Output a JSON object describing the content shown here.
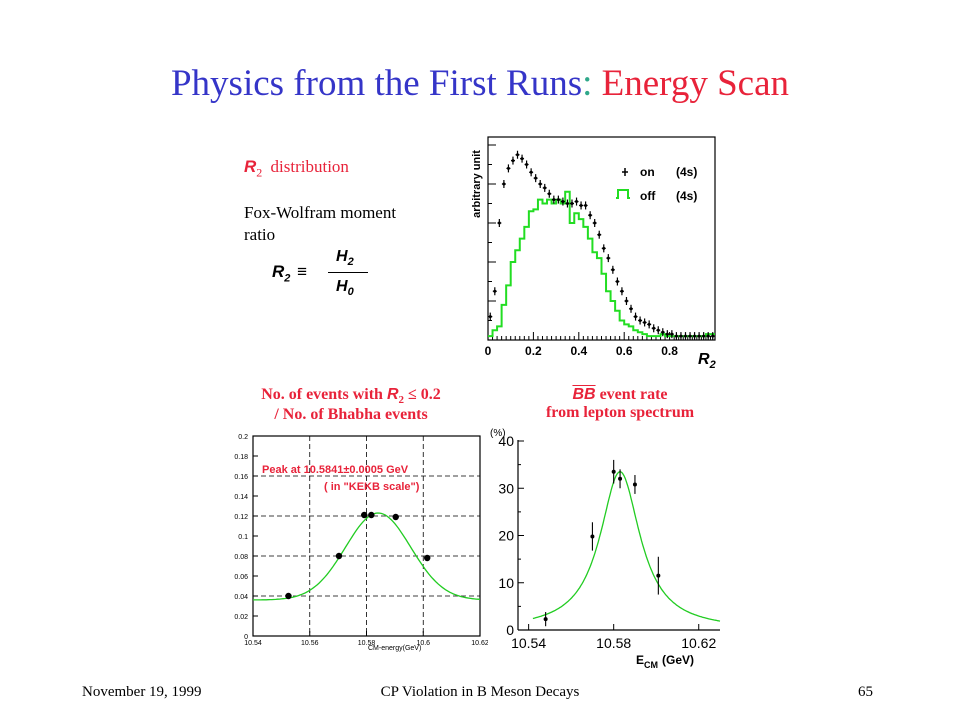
{
  "slide": {
    "title_main": "Physics from the First Runs",
    "title_sep": ": ",
    "title_highlight": "Energy Scan",
    "colors": {
      "title": "#3535c8",
      "separator": "#2fa88a",
      "highlight": "#e8233a",
      "caption": "#e8233a",
      "fit": "#22cc22"
    }
  },
  "definition": {
    "r2_symbol": "R",
    "r2_subscript": "2",
    "heading_rest": "distribution",
    "line1": "Fox-Wolfram moment",
    "line2": "ratio",
    "equiv": "≡",
    "numerator": "H",
    "numerator_sub": "2",
    "denominator": "H",
    "denominator_sub": "0"
  },
  "captions": {
    "bottom_left_line1_a": "No. of events with",
    "bottom_left_line1_b": "≤ 0.2",
    "bottom_left_line2": "/ No. of Bhabha events",
    "bottom_right_line1_a": "BB",
    "bottom_right_line1_b": "event rate",
    "bottom_right_line2": "from lepton spectrum"
  },
  "footer": {
    "date": "November 19, 1999",
    "center": "CP Violation in B Meson Decays",
    "page": "65"
  },
  "chart_data": [
    {
      "id": "r2-distribution",
      "type": "histogram",
      "ylabel": "arbitrary unit",
      "xlabel_symbol": "R",
      "xlabel_sub": "2",
      "xlim": [
        0,
        1
      ],
      "xticks": [
        "0",
        "0.2",
        "0.4",
        "0.6",
        "0.8"
      ],
      "ymax": 1.0,
      "legend_position": "top-right",
      "legend": [
        {
          "marker": "points",
          "label": "on",
          "extra": "(4s)"
        },
        {
          "marker": "step",
          "label": "off",
          "extra": "(4s)"
        }
      ],
      "series": [
        {
          "name": "on",
          "style": "points",
          "x": [
            0.01,
            0.03,
            0.05,
            0.07,
            0.09,
            0.11,
            0.13,
            0.15,
            0.17,
            0.19,
            0.21,
            0.23,
            0.25,
            0.27,
            0.29,
            0.31,
            0.33,
            0.35,
            0.37,
            0.39,
            0.41,
            0.43,
            0.45,
            0.47,
            0.49,
            0.51,
            0.53,
            0.55,
            0.57,
            0.59,
            0.61,
            0.63,
            0.65,
            0.67,
            0.69,
            0.71,
            0.73,
            0.75,
            0.77,
            0.79,
            0.81,
            0.83,
            0.85,
            0.87,
            0.89,
            0.91,
            0.93,
            0.95,
            0.97,
            0.99
          ],
          "y": [
            0.12,
            0.25,
            0.6,
            0.8,
            0.88,
            0.92,
            0.95,
            0.93,
            0.9,
            0.86,
            0.83,
            0.8,
            0.78,
            0.75,
            0.72,
            0.72,
            0.71,
            0.7,
            0.7,
            0.71,
            0.69,
            0.69,
            0.64,
            0.6,
            0.54,
            0.47,
            0.42,
            0.36,
            0.3,
            0.25,
            0.2,
            0.16,
            0.12,
            0.1,
            0.09,
            0.08,
            0.06,
            0.05,
            0.04,
            0.03,
            0.03,
            0.02,
            0.02,
            0.02,
            0.02,
            0.02,
            0.02,
            0.02,
            0.02,
            0.02
          ]
        },
        {
          "name": "off",
          "style": "step",
          "x_edges": [
            0,
            0.02,
            0.04,
            0.06,
            0.08,
            0.1,
            0.12,
            0.14,
            0.16,
            0.18,
            0.2,
            0.22,
            0.24,
            0.26,
            0.28,
            0.3,
            0.32,
            0.34,
            0.36,
            0.38,
            0.4,
            0.42,
            0.44,
            0.46,
            0.48,
            0.5,
            0.52,
            0.54,
            0.56,
            0.58,
            0.6,
            0.62,
            0.64,
            0.66,
            0.68,
            0.7,
            0.72,
            0.74,
            0.76,
            0.78,
            0.8,
            0.82,
            0.84,
            0.86,
            0.88,
            0.9,
            0.92,
            0.94,
            0.96,
            0.98,
            1.0
          ],
          "y": [
            0.02,
            0.05,
            0.07,
            0.18,
            0.28,
            0.4,
            0.46,
            0.52,
            0.58,
            0.66,
            0.67,
            0.72,
            0.7,
            0.72,
            0.7,
            0.72,
            0.7,
            0.76,
            0.6,
            0.65,
            0.62,
            0.58,
            0.52,
            0.45,
            0.42,
            0.34,
            0.25,
            0.2,
            0.15,
            0.1,
            0.08,
            0.07,
            0.05,
            0.04,
            0.03,
            0.02,
            0.02,
            0.02,
            0.03,
            0.02,
            0.02,
            0.02,
            0.02,
            0.02,
            0.02,
            0.02,
            0.02,
            0.02,
            0.03,
            0.03
          ]
        }
      ]
    },
    {
      "id": "energy-scan-ratio",
      "type": "scatter",
      "xlabel": "CM-energy(GeV)",
      "xlim": [
        10.54,
        10.62
      ],
      "ylim": [
        0,
        0.2
      ],
      "xticks": [
        "10.54",
        "10.56",
        "10.58",
        "10.6",
        "10.62"
      ],
      "yticks": [
        "0",
        "0.02",
        "0.04",
        "0.06",
        "0.08",
        "0.1",
        "0.12",
        "0.14",
        "0.16",
        "0.18",
        "0.2"
      ],
      "grid": true,
      "annotation_line1": "Peak at 10.5841±0.0005 GeV",
      "annotation_line2": "( in \"KEKB scale\")",
      "points": {
        "x": [
          10.5525,
          10.5703,
          10.5792,
          10.5817,
          10.5903,
          10.6014
        ],
        "y": [
          0.04,
          0.08,
          0.121,
          0.121,
          0.119,
          0.078
        ]
      },
      "fit": {
        "baseline": 0.036,
        "amplitude": 0.087,
        "center": 10.5841,
        "width": 0.0115
      }
    },
    {
      "id": "bb-event-rate",
      "type": "scatter",
      "ylabel": "(%)",
      "xlabel_main": "E",
      "xlabel_sub": "CM",
      "xlabel_unit": "(GeV)",
      "xlim": [
        10.535,
        10.63
      ],
      "ylim": [
        0,
        40
      ],
      "xticks": [
        "10.54",
        "10.58",
        "10.62"
      ],
      "yticks": [
        "0",
        "10",
        "20",
        "30",
        "40"
      ],
      "points": {
        "x": [
          10.548,
          10.57,
          10.58,
          10.583,
          10.59,
          10.601
        ],
        "y": [
          2.3,
          19.8,
          33.5,
          32.0,
          30.8,
          11.5
        ],
        "err": [
          1.5,
          3.0,
          2.5,
          2.0,
          2.0,
          4.0
        ]
      },
      "fit": {
        "amplitude": 33.5,
        "center": 10.583,
        "width": 0.0115,
        "baseline": 0
      }
    }
  ]
}
